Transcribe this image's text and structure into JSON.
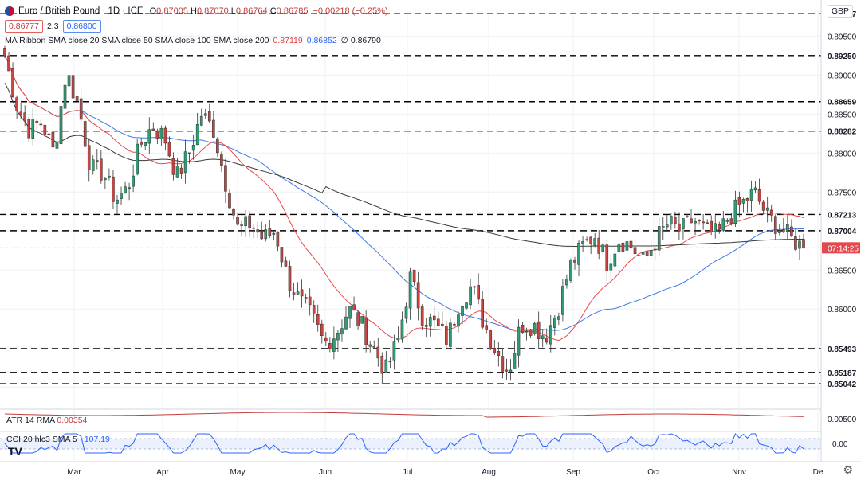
{
  "header": {
    "symbol": "Euro / British Pound · 1D · ICE",
    "open_label": "O",
    "open": "0.87005",
    "high_label": "H",
    "high": "0.87070",
    "low_label": "L",
    "low": "0.86764",
    "close_label": "C",
    "close": "0.86785",
    "change": "−0.00218 (−0.25%)",
    "bid": "0.86777",
    "spread": "2.3",
    "ask": "0.86800",
    "ma_ribbon_label": "MA Ribbon SMA close 20 SMA close 50 SMA close 100 SMA close 200",
    "ma_20_value": "0.87119",
    "ma_50_value": "0.86852",
    "ma_200_symbol": "∅",
    "ma_200_value": "0.86790",
    "currency": "GBP",
    "countdown": "07:14:25",
    "atr_label": "ATR 14 RMA",
    "atr_value": "0.00354",
    "cci_label": "CCI 20 hlc3 SMA 5",
    "cci_value": "−107.19",
    "logo": "TV"
  },
  "colors": {
    "up": "#2f9e75",
    "down": "#c9433f",
    "ma20": "#e84a4a",
    "ma50": "#3d7be6",
    "ma200": "#3a3a3a",
    "atr": "#c23b3b",
    "cci": "#2962ff",
    "grid": "#eef0f3",
    "current_price_bg": "#e2494e",
    "last_price_bg": "#e06262",
    "label_bg": "#131722"
  },
  "chart_data": [
    {
      "type": "candlestick",
      "title": "Euro / British Pound · 1D · ICE",
      "ylim": [
        0.849,
        0.8982
      ],
      "y_ticks": [
        0.85,
        0.855,
        0.86,
        0.865,
        0.87,
        0.875,
        0.88,
        0.885,
        0.89,
        0.895
      ],
      "x_ticks": [
        "Mar",
        "Apr",
        "May",
        "Jun",
        "Jul",
        "Aug",
        "Sep",
        "Oct",
        "Nov",
        "De"
      ],
      "grid": true,
      "horizontal_levels": [
        0.89787,
        0.8925,
        0.88659,
        0.88282,
        0.87213,
        0.87004,
        0.85493,
        0.85187,
        0.85042
      ],
      "current_price": 0.86785,
      "ohlc_anchor_closes": [
        0.8925,
        0.886,
        0.883,
        0.884,
        0.88,
        0.8905,
        0.886,
        0.878,
        0.8775,
        0.874,
        0.8755,
        0.881,
        0.8835,
        0.882,
        0.877,
        0.88,
        0.885,
        0.883,
        0.876,
        0.87,
        0.871,
        0.869,
        0.87,
        0.864,
        0.861,
        0.859,
        0.8555,
        0.857,
        0.86,
        0.858,
        0.855,
        0.852,
        0.856,
        0.864,
        0.859,
        0.858,
        0.856,
        0.861,
        0.863,
        0.858,
        0.8545,
        0.852,
        0.858,
        0.858,
        0.8565,
        0.86,
        0.8655,
        0.868,
        0.8695,
        0.866,
        0.869,
        0.868,
        0.866,
        0.869,
        0.871,
        0.87,
        0.8715,
        0.87,
        0.8695,
        0.872,
        0.8735,
        0.875,
        0.872,
        0.8705,
        0.869,
        0.86785
      ],
      "series": [
        {
          "name": "SMA close 20",
          "last": 0.87119
        },
        {
          "name": "SMA close 50",
          "last": 0.86852
        },
        {
          "name": "SMA close 200",
          "last": 0.8679
        }
      ]
    },
    {
      "type": "line",
      "title": "ATR 14 RMA",
      "y_ticks": [
        0.005
      ],
      "series": [
        {
          "name": "ATR 14 RMA",
          "last": 0.00354
        }
      ]
    },
    {
      "type": "line",
      "title": "CCI 20 hlc3 SMA 5",
      "y_ticks": [
        0.0
      ],
      "series": [
        {
          "name": "CCI 20 hlc3 SMA 5",
          "last": -107.19
        }
      ]
    }
  ],
  "axis_labels": {
    "levels": [
      "0.89787",
      "0.89250",
      "0.88659",
      "0.88282",
      "0.87213",
      "0.87004",
      "0.85493",
      "0.85187",
      "0.85042"
    ],
    "ticks": [
      "0.89500",
      "0.89000",
      "0.88500",
      "0.88000",
      "0.87500",
      "0.86500",
      "0.86000",
      "0.85500"
    ],
    "atr_tick": "0.00500",
    "cci_tick": "0.00",
    "months": [
      "Mar",
      "Apr",
      "May",
      "Jun",
      "Jul",
      "Aug",
      "Sep",
      "Oct",
      "Nov",
      "De"
    ]
  }
}
